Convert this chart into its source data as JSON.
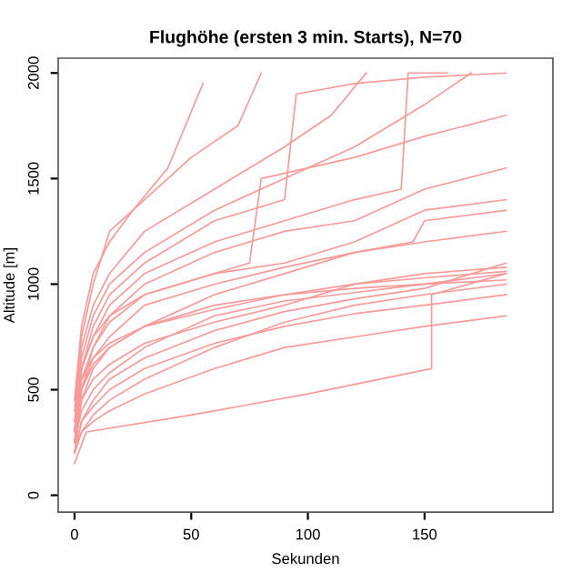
{
  "chart_data": {
    "type": "line",
    "title": "Flughöhe (ersten 3 min. Starts), N=70",
    "xlabel": "Sekunden",
    "ylabel": "Altitude [m]",
    "xlim": [
      -7,
      205
    ],
    "ylim": [
      -80,
      2070
    ],
    "xticks": [
      0,
      50,
      100,
      150
    ],
    "yticks": [
      0,
      500,
      1000,
      1500,
      2000
    ],
    "grid": false,
    "legend": false,
    "marker": "none",
    "line_style": "solid",
    "series": [
      {
        "color": "#f79a9a",
        "x": [
          0,
          3,
          8,
          15,
          25,
          40,
          55
        ],
        "values": [
          450,
          800,
          1050,
          1200,
          1350,
          1550,
          1950
        ]
      },
      {
        "color": "#f79a9a",
        "x": [
          0,
          3,
          8,
          15,
          30,
          50,
          70,
          80
        ],
        "values": [
          400,
          750,
          1000,
          1250,
          1400,
          1600,
          1750,
          2000
        ]
      },
      {
        "color": "#f79a9a",
        "x": [
          0,
          3,
          8,
          15,
          30,
          60,
          90,
          110,
          125
        ],
        "values": [
          350,
          700,
          900,
          1050,
          1250,
          1450,
          1650,
          1800,
          2000
        ]
      },
      {
        "color": "#f79a9a",
        "x": [
          0,
          3,
          8,
          15,
          30,
          60,
          90,
          120,
          150,
          170
        ],
        "values": [
          300,
          650,
          850,
          1000,
          1150,
          1350,
          1500,
          1650,
          1850,
          2000
        ]
      },
      {
        "color": "#f79a9a",
        "x": [
          0,
          3,
          8,
          15,
          30,
          60,
          90,
          95,
          120,
          150,
          185
        ],
        "values": [
          300,
          600,
          800,
          950,
          1100,
          1300,
          1400,
          1900,
          1950,
          1980,
          2000
        ]
      },
      {
        "color": "#f79a9a",
        "x": [
          0,
          3,
          8,
          15,
          30,
          60,
          90,
          120,
          140,
          143,
          160
        ],
        "values": [
          250,
          600,
          750,
          900,
          1050,
          1200,
          1300,
          1400,
          1450,
          2000,
          2000
        ]
      },
      {
        "color": "#f79a9a",
        "x": [
          0,
          3,
          8,
          15,
          30,
          60,
          90,
          120,
          150,
          185
        ],
        "values": [
          300,
          550,
          700,
          850,
          1000,
          1150,
          1250,
          1300,
          1450,
          1550
        ]
      },
      {
        "color": "#f79a9a",
        "x": [
          0,
          3,
          8,
          15,
          30,
          60,
          90,
          120,
          150,
          185
        ],
        "values": [
          250,
          500,
          700,
          820,
          950,
          1050,
          1100,
          1200,
          1350,
          1400
        ]
      },
      {
        "color": "#f79a9a",
        "x": [
          0,
          3,
          8,
          15,
          30,
          60,
          90,
          120,
          150,
          185
        ],
        "values": [
          250,
          500,
          650,
          750,
          900,
          1000,
          1080,
          1150,
          1200,
          1250
        ]
      },
      {
        "color": "#f79a9a",
        "x": [
          0,
          3,
          8,
          15,
          30,
          60,
          90,
          120,
          150,
          185
        ],
        "values": [
          200,
          450,
          600,
          700,
          800,
          900,
          950,
          1000,
          1030,
          1060
        ]
      },
      {
        "color": "#f79a9a",
        "x": [
          0,
          3,
          8,
          15,
          30,
          60,
          90,
          120,
          150,
          185
        ],
        "values": [
          300,
          550,
          650,
          720,
          800,
          880,
          950,
          980,
          1000,
          1050
        ]
      },
      {
        "color": "#f79a9a",
        "x": [
          0,
          3,
          8,
          15,
          30,
          60,
          90,
          120,
          150,
          185
        ],
        "values": [
          250,
          400,
          500,
          580,
          700,
          850,
          920,
          960,
          1000,
          1020
        ]
      },
      {
        "color": "#f79a9a",
        "x": [
          0,
          3,
          8,
          15,
          30,
          60,
          90,
          120,
          150,
          185
        ],
        "values": [
          200,
          300,
          380,
          450,
          550,
          700,
          820,
          900,
          950,
          1000
        ]
      },
      {
        "color": "#f79a9a",
        "x": [
          0,
          3,
          8,
          15,
          30,
          60,
          90,
          120,
          150,
          185
        ],
        "values": [
          200,
          350,
          450,
          550,
          650,
          780,
          870,
          930,
          980,
          1100
        ]
      },
      {
        "color": "#f79a9a",
        "x": [
          0,
          3,
          8,
          15,
          30,
          60,
          90,
          120,
          150,
          185
        ],
        "values": [
          250,
          450,
          550,
          620,
          720,
          820,
          900,
          1000,
          1050,
          1080
        ]
      },
      {
        "color": "#f79a9a",
        "x": [
          0,
          3,
          8,
          15,
          30,
          60,
          90,
          120,
          150,
          185
        ],
        "values": [
          200,
          350,
          420,
          500,
          600,
          720,
          800,
          860,
          900,
          950
        ]
      },
      {
        "color": "#f79a9a",
        "x": [
          0,
          3,
          8,
          15,
          30,
          60,
          90,
          120,
          145,
          150,
          185
        ],
        "values": [
          250,
          500,
          620,
          700,
          800,
          950,
          1050,
          1150,
          1200,
          1300,
          1350
        ]
      },
      {
        "color": "#f79a9a",
        "x": [
          0,
          3,
          8,
          15,
          30,
          60,
          75,
          80,
          120,
          150,
          185
        ],
        "values": [
          300,
          600,
          750,
          850,
          950,
          1050,
          1100,
          1500,
          1600,
          1700,
          1800
        ]
      },
      {
        "color": "#f79a9a",
        "x": [
          0,
          5,
          50,
          100,
          153,
          153,
          185
        ],
        "values": [
          150,
          300,
          380,
          480,
          600,
          950,
          1050
        ]
      },
      {
        "color": "#f79a9a",
        "x": [
          0,
          3,
          8,
          15,
          30,
          60,
          90,
          120,
          150,
          185
        ],
        "values": [
          200,
          300,
          350,
          400,
          480,
          600,
          700,
          750,
          800,
          850
        ]
      }
    ]
  }
}
